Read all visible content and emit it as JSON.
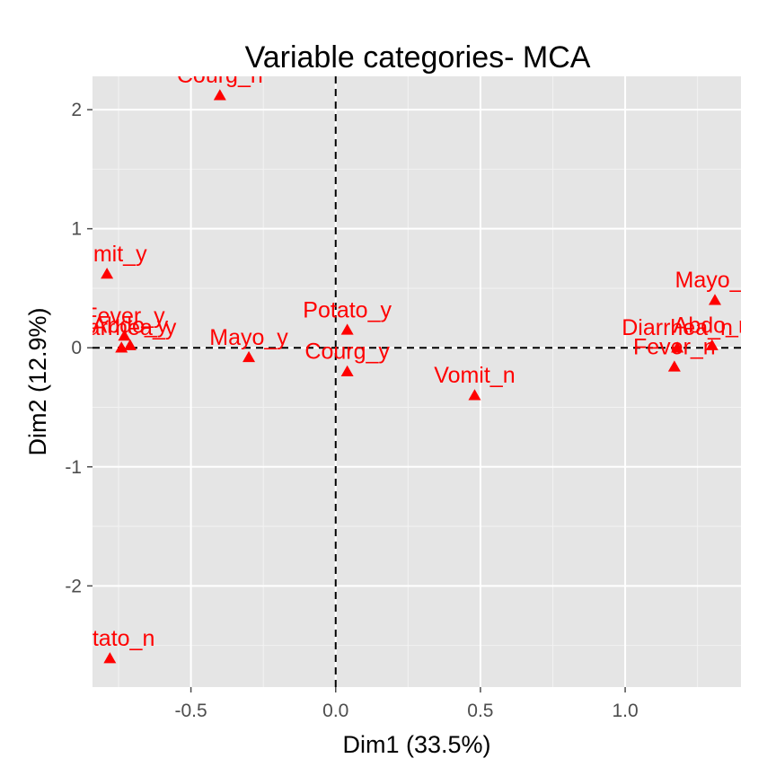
{
  "chart_data": {
    "type": "scatter",
    "title": "Variable categories- MCA",
    "xlabel": "Dim1 (33.5%)",
    "ylabel": "Dim2 (12.9%)",
    "xlim": [
      -0.84,
      1.4
    ],
    "ylim": [
      -2.85,
      2.28
    ],
    "x_ticks": [
      -0.5,
      0.0,
      0.5,
      1.0
    ],
    "x_tick_labels": [
      "-0.5",
      "0.0",
      "0.5",
      "1.0"
    ],
    "y_ticks": [
      -2,
      -1,
      0,
      1,
      2
    ],
    "y_tick_labels": [
      "-2",
      "-1",
      "0",
      "1",
      "2"
    ],
    "grid": true,
    "reference_lines": {
      "x": 0,
      "y": 0,
      "style": "dashed"
    },
    "point_color": "#ff0000",
    "panel_background": "#e5e5e5",
    "marker": "triangle",
    "points": [
      {
        "label": "Courg_n",
        "x": -0.4,
        "y": 2.12
      },
      {
        "label": "Vomit_y",
        "x": -0.79,
        "y": 0.62
      },
      {
        "label": "Fever_y",
        "x": -0.73,
        "y": 0.1
      },
      {
        "label": "Abdo_y",
        "x": -0.71,
        "y": 0.02
      },
      {
        "label": "Diarrhea_y",
        "x": -0.74,
        "y": 0.0
      },
      {
        "label": "Mayo_y",
        "x": -0.3,
        "y": -0.08
      },
      {
        "label": "Potato_y",
        "x": 0.04,
        "y": 0.15
      },
      {
        "label": "Courg_y",
        "x": 0.04,
        "y": -0.2
      },
      {
        "label": "Vomit_n",
        "x": 0.48,
        "y": -0.4
      },
      {
        "label": "Mayo_n",
        "x": 1.31,
        "y": 0.4
      },
      {
        "label": "Diarrhea_n",
        "x": 1.18,
        "y": 0.0
      },
      {
        "label": "Abdo_n",
        "x": 1.3,
        "y": 0.02
      },
      {
        "label": "Fever_n",
        "x": 1.17,
        "y": -0.16
      },
      {
        "label": "Potato_n",
        "x": -0.78,
        "y": -2.61
      }
    ]
  }
}
